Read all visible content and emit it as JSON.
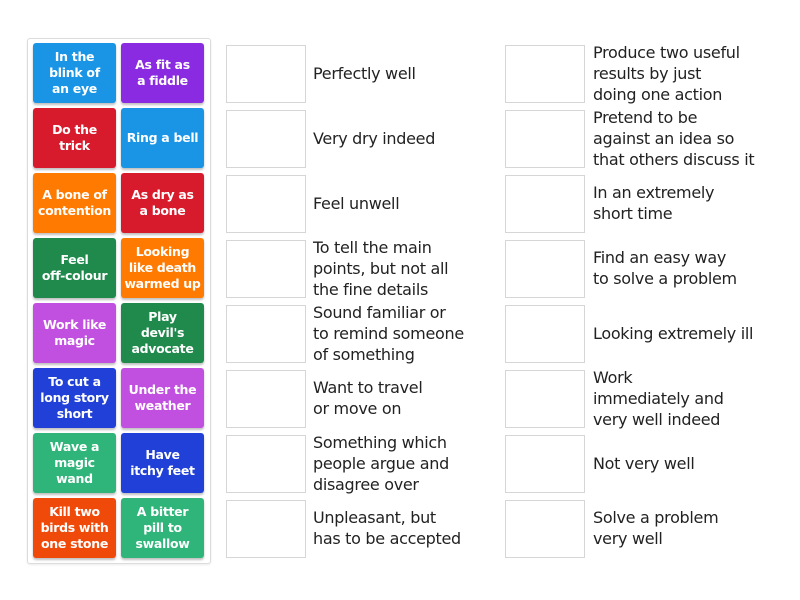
{
  "tiles": [
    {
      "label": "In the\nblink of\nan eye",
      "color": "#1a95e6"
    },
    {
      "label": "As fit as\na fiddle",
      "color": "#8a2be2"
    },
    {
      "label": "Do the\ntrick",
      "color": "#d81b2c"
    },
    {
      "label": "Ring a bell",
      "color": "#1a95e6"
    },
    {
      "label": "A bone of\ncontention",
      "color": "#ff7a00"
    },
    {
      "label": "As dry as\na bone",
      "color": "#d81b2c"
    },
    {
      "label": "Feel\noff-colour",
      "color": "#1f8a4c"
    },
    {
      "label": "Looking\nlike death\nwarmed up",
      "color": "#ff7a00"
    },
    {
      "label": "Work like\nmagic",
      "color": "#c150e0"
    },
    {
      "label": "Play\ndevil's\nadvocate",
      "color": "#1f8a4c"
    },
    {
      "label": "To cut a\nlong story\nshort",
      "color": "#2040d8"
    },
    {
      "label": "Under the\nweather",
      "color": "#c150e0"
    },
    {
      "label": "Wave a\nmagic\nwand",
      "color": "#2fb57a"
    },
    {
      "label": "Have\nitchy feet",
      "color": "#2040d8"
    },
    {
      "label": "Kill two\nbirds with\none stone",
      "color": "#f04a0a"
    },
    {
      "label": "A bitter\npill to\nswallow",
      "color": "#2fb57a"
    }
  ],
  "left_definitions": [
    "Perfectly well",
    "Very dry indeed",
    "Feel unwell",
    "To tell the main\npoints, but not all\nthe fine details",
    "Sound familiar or\nto remind someone\nof something",
    "Want to travel\nor move on",
    "Something which\npeople argue and\ndisagree over",
    "Unpleasant, but\nhas to be accepted"
  ],
  "right_definitions": [
    "Produce two useful\nresults by just\ndoing one action",
    "Pretend to be\nagainst an idea so\nthat others discuss it",
    "In an extremely\nshort time",
    "Find an easy way\nto solve a problem",
    "Looking extremely ill",
    "Work\nimmediately and\nvery well indeed",
    "Not very well",
    "Solve a problem\nvery well"
  ]
}
